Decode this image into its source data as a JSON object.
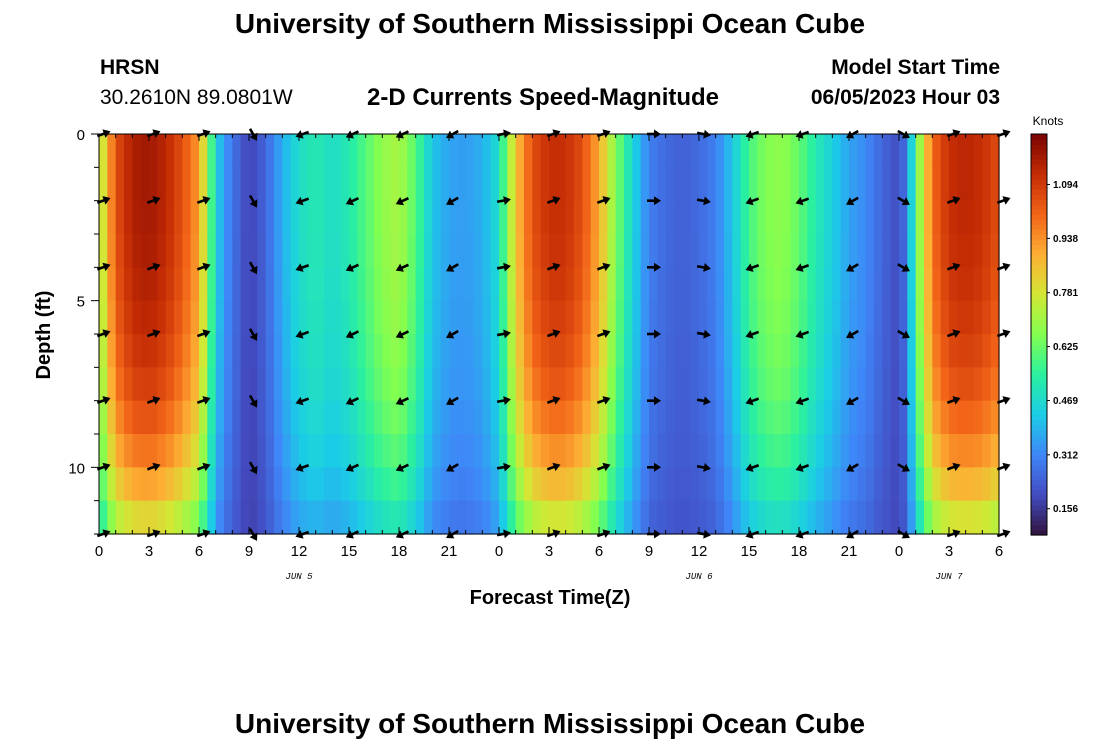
{
  "header": {
    "title": "University of Southern Mississippi Ocean Cube",
    "station_name": "HRSN",
    "station_coords": "30.2610N  89.0801W",
    "chart_title": "2-D Currents Speed-Magnitude",
    "start_label": "Model Start Time",
    "start_time": "06/05/2023 Hour 03"
  },
  "footer": {
    "title": "University of Southern Mississippi Ocean Cube"
  },
  "chart_data": {
    "type": "heatmap",
    "title": "2-D Currents Speed-Magnitude",
    "xlabel": "Forecast Time(Z)",
    "ylabel": "Depth (ft)",
    "x_range_hours": [
      0,
      54
    ],
    "y_range_ft": [
      0,
      12
    ],
    "x_ticks": [
      {
        "h": 0,
        "label": "0"
      },
      {
        "h": 3,
        "label": "3"
      },
      {
        "h": 6,
        "label": "6"
      },
      {
        "h": 9,
        "label": "9"
      },
      {
        "h": 12,
        "label": "12"
      },
      {
        "h": 15,
        "label": "15"
      },
      {
        "h": 18,
        "label": "18"
      },
      {
        "h": 21,
        "label": "21"
      },
      {
        "h": 24,
        "label": "0"
      },
      {
        "h": 27,
        "label": "3"
      },
      {
        "h": 30,
        "label": "6"
      },
      {
        "h": 33,
        "label": "9"
      },
      {
        "h": 36,
        "label": "12"
      },
      {
        "h": 39,
        "label": "15"
      },
      {
        "h": 42,
        "label": "18"
      },
      {
        "h": 45,
        "label": "21"
      },
      {
        "h": 48,
        "label": "0"
      },
      {
        "h": 51,
        "label": "3"
      },
      {
        "h": 54,
        "label": "6"
      }
    ],
    "date_labels": [
      {
        "h": 12,
        "label": "JUN 5"
      },
      {
        "h": 36,
        "label": "JUN 6"
      },
      {
        "h": 51,
        "label": "JUN 7"
      }
    ],
    "y_ticks": [
      {
        "v": 0,
        "label": "0"
      },
      {
        "v": 5,
        "label": "5"
      },
      {
        "v": 10,
        "label": "10"
      }
    ],
    "colorbar": {
      "label": "Knots",
      "min": 0.08,
      "max": 1.24,
      "ticks": [
        "0.156",
        "0.312",
        "0.469",
        "0.625",
        "0.781",
        "0.938",
        "1.094"
      ]
    },
    "speed_knots_by_hour": [
      {
        "h": 0,
        "v": 0.7
      },
      {
        "h": 1,
        "v": 1.05
      },
      {
        "h": 2,
        "v": 1.16
      },
      {
        "h": 3,
        "v": 1.18
      },
      {
        "h": 4,
        "v": 1.14
      },
      {
        "h": 5,
        "v": 1.05
      },
      {
        "h": 6,
        "v": 0.92
      },
      {
        "h": 6.5,
        "v": 0.7
      },
      {
        "h": 7,
        "v": 0.45
      },
      {
        "h": 7.5,
        "v": 0.35
      },
      {
        "h": 8,
        "v": 0.28
      },
      {
        "h": 9,
        "v": 0.18
      },
      {
        "h": 10,
        "v": 0.25
      },
      {
        "h": 11,
        "v": 0.38
      },
      {
        "h": 12,
        "v": 0.48
      },
      {
        "h": 13,
        "v": 0.52
      },
      {
        "h": 14,
        "v": 0.48
      },
      {
        "h": 15,
        "v": 0.52
      },
      {
        "h": 16,
        "v": 0.6
      },
      {
        "h": 17,
        "v": 0.68
      },
      {
        "h": 18,
        "v": 0.72
      },
      {
        "h": 19,
        "v": 0.6
      },
      {
        "h": 20,
        "v": 0.42
      },
      {
        "h": 21,
        "v": 0.36
      },
      {
        "h": 22,
        "v": 0.35
      },
      {
        "h": 23,
        "v": 0.38
      },
      {
        "h": 24,
        "v": 0.48
      },
      {
        "h": 25,
        "v": 0.85
      },
      {
        "h": 26,
        "v": 1.05
      },
      {
        "h": 27,
        "v": 1.12
      },
      {
        "h": 28,
        "v": 1.12
      },
      {
        "h": 29,
        "v": 1.05
      },
      {
        "h": 30,
        "v": 0.9
      },
      {
        "h": 31,
        "v": 0.66
      },
      {
        "h": 32,
        "v": 0.46
      },
      {
        "h": 33,
        "v": 0.3
      },
      {
        "h": 34,
        "v": 0.26
      },
      {
        "h": 35,
        "v": 0.24
      },
      {
        "h": 36,
        "v": 0.26
      },
      {
        "h": 37,
        "v": 0.3
      },
      {
        "h": 38,
        "v": 0.42
      },
      {
        "h": 39,
        "v": 0.58
      },
      {
        "h": 40,
        "v": 0.66
      },
      {
        "h": 41,
        "v": 0.68
      },
      {
        "h": 42,
        "v": 0.62
      },
      {
        "h": 43,
        "v": 0.52
      },
      {
        "h": 44,
        "v": 0.44
      },
      {
        "h": 45,
        "v": 0.36
      },
      {
        "h": 46,
        "v": 0.32
      },
      {
        "h": 47,
        "v": 0.25
      },
      {
        "h": 48,
        "v": 0.2
      },
      {
        "h": 48.5,
        "v": 0.3
      },
      {
        "h": 49,
        "v": 0.6
      },
      {
        "h": 50,
        "v": 1.0
      },
      {
        "h": 51,
        "v": 1.12
      },
      {
        "h": 52,
        "v": 1.14
      },
      {
        "h": 53,
        "v": 1.12
      },
      {
        "h": 54,
        "v": 1.05
      }
    ],
    "depth_profile": [
      {
        "d": 0,
        "f": 1.0
      },
      {
        "d": 2,
        "f": 1.0
      },
      {
        "d": 4,
        "f": 0.99
      },
      {
        "d": 6,
        "f": 0.97
      },
      {
        "d": 8,
        "f": 0.93
      },
      {
        "d": 10,
        "f": 0.85
      },
      {
        "d": 11,
        "f": 0.78
      },
      {
        "d": 12,
        "f": 0.7
      }
    ],
    "vector_hours": [
      0,
      3,
      6,
      9,
      12,
      15,
      18,
      21,
      24,
      27,
      30,
      33,
      36,
      39,
      42,
      45,
      48,
      51,
      54
    ],
    "vector_depths_ft": [
      0,
      2,
      4,
      6,
      8,
      10,
      12
    ],
    "vector_direction_deg_by_hour": [
      20,
      20,
      20,
      -60,
      -160,
      -155,
      -155,
      -150,
      10,
      20,
      20,
      0,
      -10,
      -160,
      -160,
      -150,
      -30,
      20,
      20
    ],
    "arrow_color": "#000000"
  }
}
